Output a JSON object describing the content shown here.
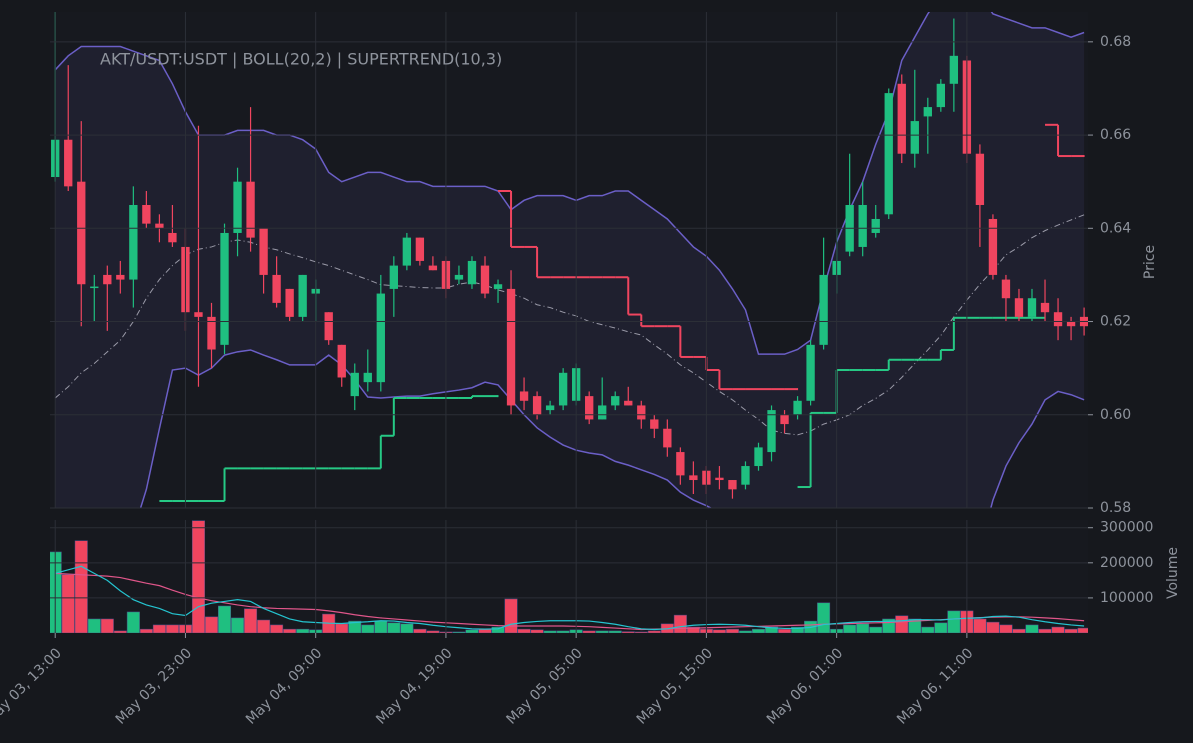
{
  "chart_data": [
    {
      "type": "candlestick",
      "title": "AKT/USDT:USDT | BOLL(20,2) | SUPERTREND(10,3)",
      "y_label": "Price",
      "categories": [
        "May 03, 13:00",
        null,
        null,
        null,
        null,
        null,
        null,
        null,
        null,
        null,
        "May 03, 23:00",
        null,
        null,
        null,
        null,
        null,
        null,
        null,
        null,
        null,
        "May 04, 09:00",
        null,
        null,
        null,
        null,
        null,
        null,
        null,
        null,
        null,
        "May 04, 19:00",
        null,
        null,
        null,
        null,
        null,
        null,
        null,
        null,
        null,
        "May 05, 05:00",
        null,
        null,
        null,
        null,
        null,
        null,
        null,
        null,
        null,
        "May 05, 15:00",
        null,
        null,
        null,
        null,
        null,
        null,
        null,
        null,
        null,
        "May 06, 01:00",
        null,
        null,
        null,
        null,
        null,
        null,
        null,
        null,
        null,
        "May 06, 11:00",
        null,
        null,
        null,
        null,
        null,
        null,
        null,
        null,
        null
      ],
      "open": [
        0.651,
        0.659,
        0.65,
        0.6275,
        0.63,
        0.63,
        0.629,
        0.645,
        0.641,
        0.639,
        0.636,
        0.622,
        0.621,
        0.615,
        0.639,
        0.65,
        0.64,
        0.63,
        0.627,
        0.621,
        0.626,
        0.622,
        0.615,
        0.604,
        0.607,
        0.607,
        0.627,
        0.632,
        0.638,
        0.632,
        0.633,
        0.629,
        0.628,
        0.632,
        0.627,
        0.627,
        0.605,
        0.604,
        0.601,
        0.602,
        0.603,
        0.604,
        0.599,
        0.602,
        0.603,
        0.602,
        0.599,
        0.597,
        0.592,
        0.587,
        0.588,
        0.5865,
        0.586,
        0.585,
        0.589,
        0.592,
        0.6,
        0.6,
        0.603,
        0.615,
        0.63,
        0.635,
        0.636,
        0.639,
        0.643,
        0.671,
        0.656,
        0.664,
        0.666,
        0.671,
        0.676,
        0.656,
        0.642,
        0.629,
        0.625,
        0.621,
        0.624,
        0.622,
        0.62,
        0.621
      ],
      "high": [
        0.6864,
        0.675,
        0.663,
        0.63,
        0.632,
        0.633,
        0.649,
        0.648,
        0.643,
        0.645,
        0.64,
        0.662,
        0.624,
        0.641,
        0.653,
        0.666,
        0.64,
        0.634,
        0.627,
        0.63,
        0.629,
        0.622,
        0.615,
        0.611,
        0.614,
        0.63,
        0.634,
        0.639,
        0.638,
        0.634,
        0.634,
        0.632,
        0.634,
        0.634,
        0.629,
        0.631,
        0.608,
        0.605,
        0.603,
        0.61,
        0.611,
        0.605,
        0.608,
        0.605,
        0.606,
        0.603,
        0.6,
        0.599,
        0.593,
        0.59,
        0.589,
        0.589,
        0.586,
        0.59,
        0.594,
        0.602,
        0.601,
        0.604,
        0.616,
        0.638,
        0.64,
        0.656,
        0.65,
        0.645,
        0.67,
        0.673,
        0.674,
        0.668,
        0.672,
        0.685,
        0.677,
        0.658,
        0.643,
        0.63,
        0.627,
        0.627,
        0.629,
        0.625,
        0.621,
        0.623
      ],
      "low": [
        0.65,
        0.648,
        0.619,
        0.62,
        0.618,
        0.626,
        0.623,
        0.64,
        0.637,
        0.636,
        0.618,
        0.606,
        0.61,
        0.613,
        0.634,
        0.635,
        0.626,
        0.623,
        0.62,
        0.62,
        0.62,
        0.615,
        0.606,
        0.601,
        0.605,
        0.605,
        0.621,
        0.631,
        0.632,
        0.631,
        0.625,
        0.628,
        0.627,
        0.625,
        0.624,
        0.6,
        0.601,
        0.599,
        0.6,
        0.601,
        0.602,
        0.598,
        0.599,
        0.601,
        0.602,
        0.597,
        0.595,
        0.591,
        0.585,
        0.583,
        0.583,
        0.584,
        0.582,
        0.584,
        0.588,
        0.59,
        0.596,
        0.599,
        0.602,
        0.614,
        0.626,
        0.634,
        0.634,
        0.638,
        0.642,
        0.654,
        0.653,
        0.656,
        0.665,
        0.665,
        0.654,
        0.636,
        0.629,
        0.62,
        0.62,
        0.62,
        0.62,
        0.616,
        0.616,
        0.617
      ],
      "close": [
        0.659,
        0.649,
        0.628,
        0.6275,
        0.628,
        0.629,
        0.645,
        0.641,
        0.64,
        0.637,
        0.622,
        0.621,
        0.614,
        0.639,
        0.65,
        0.638,
        0.63,
        0.624,
        0.621,
        0.63,
        0.627,
        0.616,
        0.608,
        0.609,
        0.609,
        0.626,
        0.632,
        0.638,
        0.633,
        0.631,
        0.627,
        0.63,
        0.633,
        0.626,
        0.628,
        0.602,
        0.603,
        0.6,
        0.602,
        0.609,
        0.61,
        0.599,
        0.602,
        0.604,
        0.602,
        0.599,
        0.597,
        0.593,
        0.587,
        0.586,
        0.585,
        0.586,
        0.584,
        0.589,
        0.593,
        0.601,
        0.598,
        0.603,
        0.615,
        0.63,
        0.633,
        0.645,
        0.645,
        0.642,
        0.669,
        0.656,
        0.663,
        0.666,
        0.671,
        0.677,
        0.656,
        0.645,
        0.63,
        0.625,
        0.621,
        0.625,
        0.622,
        0.619,
        0.619,
        0.619
      ],
      "bollinger_upper": [
        0.674,
        0.677,
        0.679,
        0.679,
        0.679,
        0.679,
        0.678,
        0.677,
        0.676,
        0.671,
        0.665,
        0.66,
        0.66,
        0.66,
        0.661,
        0.661,
        0.661,
        0.66,
        0.66,
        0.659,
        0.657,
        0.652,
        0.65,
        0.651,
        0.652,
        0.652,
        0.651,
        0.65,
        0.65,
        0.649,
        0.649,
        0.649,
        0.649,
        0.649,
        0.648,
        0.644,
        0.646,
        0.647,
        0.647,
        0.647,
        0.646,
        0.647,
        0.647,
        0.648,
        0.648,
        0.646,
        0.644,
        0.642,
        0.639,
        0.636,
        0.634,
        0.631,
        0.627,
        0.6225,
        0.613,
        0.613,
        0.613,
        0.614,
        0.616,
        0.627,
        0.637,
        0.644,
        0.65,
        0.658,
        0.665,
        0.676,
        0.681,
        0.686,
        0.69,
        0.692,
        0.692,
        0.69,
        0.686,
        0.685,
        0.684,
        0.683,
        0.683,
        0.682,
        0.681,
        0.682
      ],
      "bollinger_mid": [
        0.6036,
        0.606,
        0.609,
        0.611,
        0.6135,
        0.616,
        0.62,
        0.625,
        0.629,
        0.632,
        0.6343,
        0.6355,
        0.636,
        0.637,
        0.6375,
        0.637,
        0.636,
        0.6354,
        0.6345,
        0.6337,
        0.6328,
        0.632,
        0.631,
        0.63,
        0.629,
        0.6279,
        0.6277,
        0.6275,
        0.6273,
        0.6272,
        0.6272,
        0.628,
        0.6285,
        0.6278,
        0.6268,
        0.626,
        0.625,
        0.6236,
        0.623,
        0.622,
        0.6212,
        0.62,
        0.6193,
        0.6186,
        0.6178,
        0.6171,
        0.615,
        0.613,
        0.6107,
        0.609,
        0.607,
        0.605,
        0.6032,
        0.601,
        0.599,
        0.5967,
        0.596,
        0.5957,
        0.5965,
        0.598,
        0.5989,
        0.6,
        0.602,
        0.6035,
        0.6053,
        0.608,
        0.611,
        0.6139,
        0.617,
        0.621,
        0.6246,
        0.628,
        0.631,
        0.6343,
        0.636,
        0.638,
        0.6395,
        0.6407,
        0.6418,
        0.6429
      ],
      "bollinger_lower": [
        0.54,
        0.545,
        0.55,
        0.556,
        0.562,
        0.568,
        0.575,
        0.584,
        0.597,
        0.6096,
        0.61,
        0.6085,
        0.61,
        0.6128,
        0.6135,
        0.6139,
        0.6128,
        0.6118,
        0.6107,
        0.6107,
        0.6107,
        0.6128,
        0.6107,
        0.6075,
        0.6038,
        0.6036,
        0.6038,
        0.604,
        0.604,
        0.6045,
        0.6049,
        0.6053,
        0.6058,
        0.607,
        0.6064,
        0.6032,
        0.6,
        0.5972,
        0.5952,
        0.5935,
        0.5924,
        0.5918,
        0.5914,
        0.59,
        0.5892,
        0.5882,
        0.5872,
        0.586,
        0.5834,
        0.5817,
        0.5805,
        0.579,
        0.5785,
        0.577,
        0.574,
        0.572,
        0.571,
        0.57,
        0.566,
        0.562,
        0.56,
        0.557,
        0.555,
        0.554,
        0.553,
        0.553,
        0.554,
        0.556,
        0.559,
        0.563,
        0.567,
        0.571,
        0.5817,
        0.589,
        0.594,
        0.598,
        0.6032,
        0.605,
        0.6043,
        0.6032
      ],
      "supertrend_up": [
        null,
        null,
        null,
        null,
        null,
        null,
        null,
        null,
        0.5815,
        0.5815,
        0.5815,
        0.5815,
        0.5815,
        0.5885,
        0.5885,
        0.5885,
        0.5885,
        0.5885,
        0.5885,
        0.5885,
        0.5885,
        0.5885,
        0.5885,
        0.5885,
        0.5885,
        0.5955,
        0.6036,
        0.6036,
        0.6036,
        0.6036,
        0.6036,
        0.6036,
        0.604,
        0.604,
        0.604,
        null,
        null,
        null,
        null,
        null,
        null,
        null,
        null,
        null,
        null,
        null,
        null,
        null,
        null,
        null,
        null,
        null,
        null,
        null,
        null,
        null,
        null,
        0.5845,
        0.6004,
        0.6004,
        0.6096,
        0.6096,
        0.6096,
        0.6096,
        0.6118,
        0.6118,
        0.6118,
        0.6118,
        0.6139,
        0.6208,
        0.6208,
        0.6208,
        0.6208,
        0.6208,
        0.6208,
        0.6208,
        0.6208,
        null,
        null,
        null
      ],
      "supertrend_down": [
        null,
        null,
        null,
        null,
        null,
        null,
        null,
        null,
        null,
        null,
        null,
        null,
        null,
        null,
        null,
        null,
        null,
        null,
        null,
        null,
        null,
        null,
        null,
        null,
        null,
        null,
        null,
        null,
        null,
        null,
        null,
        null,
        null,
        null,
        0.648,
        0.636,
        0.636,
        0.6295,
        0.6295,
        0.6295,
        0.6295,
        0.6295,
        0.6295,
        0.6295,
        0.6215,
        0.619,
        0.619,
        0.619,
        0.6124,
        0.6124,
        0.6096,
        0.6055,
        0.6055,
        0.6055,
        0.6055,
        0.6055,
        0.6055,
        0.6055,
        null,
        null,
        null,
        null,
        null,
        null,
        null,
        null,
        null,
        null,
        null,
        null,
        null,
        null,
        null,
        null,
        null,
        null,
        0.6622,
        0.6555,
        0.6555,
        0.6555
      ],
      "up_color": "#1fbf80",
      "down_color": "#f0455f",
      "band_color": "#6b5fc7",
      "mid_color": "#9a9aa8",
      "supertrend_up_color": "#26c985",
      "supertrend_down_color": "#f0455f",
      "ylim": [
        0.58,
        0.6864
      ],
      "yticks": [
        0.58,
        {
          "value": 0.6,
          "label": "0.60"
        },
        0.62,
        0.64,
        0.66,
        0.68
      ],
      "grid": true
    },
    {
      "type": "bar",
      "y_label": "Volume",
      "values": [
        231000,
        166000,
        263000,
        40000,
        40000,
        6000,
        60000,
        11000,
        23000,
        23000,
        23000,
        320000,
        46000,
        77000,
        43000,
        69000,
        37000,
        23000,
        11000,
        11000,
        9000,
        54000,
        26000,
        34000,
        23000,
        34000,
        29000,
        26000,
        11000,
        6000,
        3000,
        3000,
        9000,
        11000,
        17000,
        97000,
        11000,
        9000,
        6000,
        6000,
        9000,
        6000,
        6000,
        6000,
        4000,
        3000,
        6000,
        26000,
        51000,
        17000,
        11000,
        9000,
        11000,
        6000,
        11000,
        17000,
        11000,
        17000,
        34000,
        86000,
        11000,
        23000,
        26000,
        17000,
        40000,
        49000,
        40000,
        17000,
        29000,
        63000,
        63000,
        40000,
        31000,
        23000,
        11000,
        23000,
        11000,
        17000,
        11000,
        14000
      ],
      "ma_fast": [
        170000,
        180000,
        190000,
        170000,
        150000,
        120000,
        95000,
        80000,
        70000,
        55000,
        50000,
        75000,
        85000,
        90000,
        95000,
        90000,
        70000,
        55000,
        40000,
        32000,
        30000,
        28000,
        27000,
        30000,
        32000,
        35000,
        34000,
        30000,
        27000,
        22000,
        18000,
        15000,
        12000,
        11000,
        12000,
        25000,
        30000,
        33000,
        35000,
        35000,
        35000,
        34000,
        30000,
        25000,
        18000,
        12000,
        10000,
        12000,
        18000,
        22000,
        24000,
        25000,
        24000,
        22000,
        18000,
        15000,
        13000,
        13000,
        16000,
        24000,
        27000,
        30000,
        32000,
        33000,
        33000,
        35000,
        38000,
        38000,
        37000,
        40000,
        42000,
        43000,
        47000,
        48000,
        45000,
        38000,
        32000,
        27000,
        23000,
        20000
      ],
      "ma_slow": [
        170000,
        168000,
        166000,
        164000,
        162000,
        158000,
        150000,
        142000,
        135000,
        122000,
        110000,
        100000,
        92000,
        86000,
        80000,
        75000,
        72000,
        70000,
        69000,
        68000,
        67000,
        63000,
        58000,
        52000,
        47000,
        43000,
        40000,
        37000,
        34000,
        31000,
        29000,
        27000,
        25000,
        23000,
        21000,
        20000,
        20000,
        20000,
        20000,
        20000,
        19000,
        18000,
        16000,
        14000,
        12000,
        10000,
        11000,
        12000,
        13000,
        14000,
        15000,
        16000,
        17000,
        18000,
        19000,
        20000,
        21000,
        22000,
        23000,
        25000,
        26000,
        27000,
        28000,
        29000,
        30000,
        32000,
        34000,
        36000,
        38000,
        40000,
        42000,
        44000,
        45000,
        46000,
        46000,
        45000,
        43000,
        41000,
        38000,
        35000
      ],
      "ma_fast_color": "#25c4d0",
      "ma_slow_color": "#e0568a",
      "ylim": [
        0,
        322000
      ],
      "yticks": [
        100000,
        200000,
        300000
      ],
      "grid": true
    }
  ]
}
